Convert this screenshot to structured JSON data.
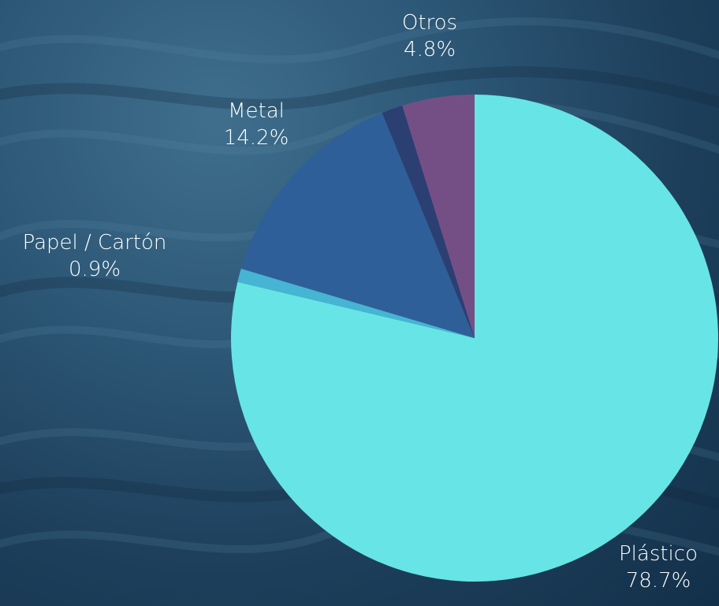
{
  "chart_data": {
    "type": "pie",
    "slices": [
      {
        "name": "Plástico",
        "value": 78.7,
        "percent_label": "78.7%",
        "color": "#67e4e6"
      },
      {
        "name": "Papel / Cartón",
        "value": 0.9,
        "percent_label": "0.9%",
        "color": "#46b4d3"
      },
      {
        "name": "Metal",
        "value": 14.2,
        "percent_label": "14.2%",
        "color": "#2f5f98"
      },
      {
        "name": "",
        "value": 1.4,
        "percent_label": "",
        "color": "#2b3f72"
      },
      {
        "name": "Otros",
        "value": 4.8,
        "percent_label": "4.8%",
        "color": "#744f86"
      }
    ],
    "label_color": "#ffffff"
  }
}
